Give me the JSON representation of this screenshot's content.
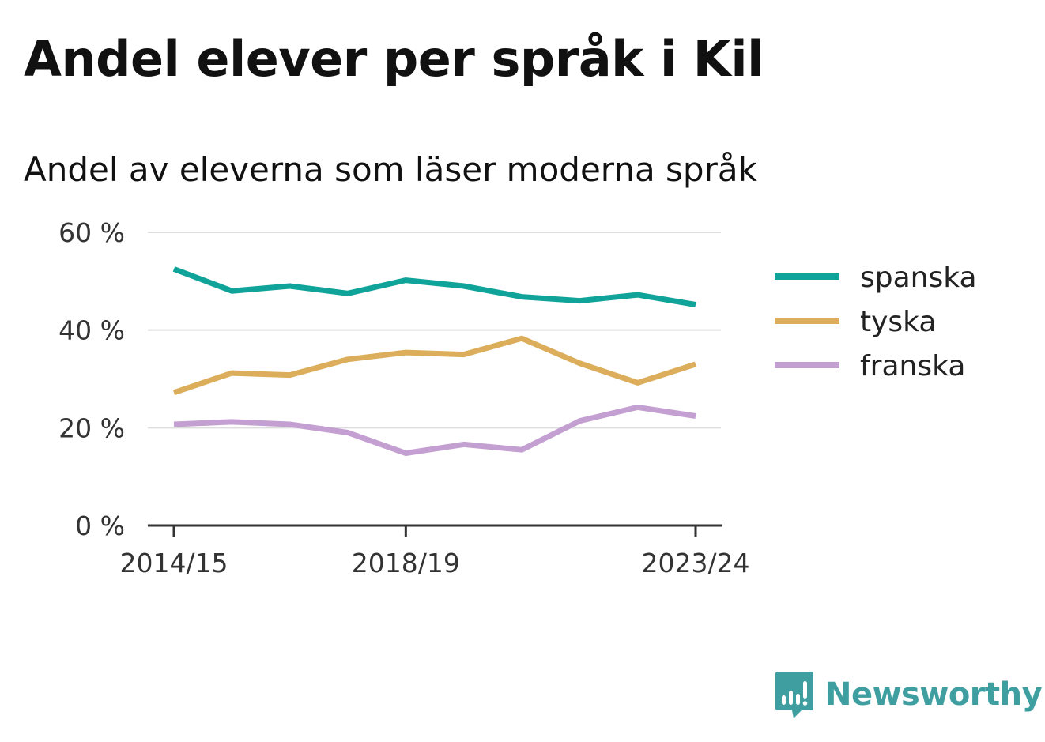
{
  "title": "Andel elever per språk i Kil",
  "subtitle": "Andel av eleverna som läser moderna språk",
  "brand": {
    "name": "Newsworthy",
    "icon": "bar-chart-speech-bubble-icon",
    "color": "#3f9ea0"
  },
  "chart_data": {
    "type": "line",
    "x": [
      "2014/15",
      "2015/16",
      "2016/17",
      "2017/18",
      "2018/19",
      "2019/20",
      "2020/21",
      "2021/22",
      "2022/23",
      "2023/24"
    ],
    "x_tick_labels": [
      "2014/15",
      "2018/19",
      "2023/24"
    ],
    "y_tick_labels": [
      "0 %",
      "20 %",
      "40 %",
      "60 %"
    ],
    "y_ticks": [
      0,
      20,
      40,
      60
    ],
    "ylim": [
      0,
      60
    ],
    "grid": true,
    "legend_position": "right",
    "series": [
      {
        "name": "spanska",
        "color": "#0fa39a",
        "values": [
          52.5,
          48.0,
          49.0,
          47.5,
          50.2,
          49.0,
          46.8,
          46.0,
          47.2,
          45.2
        ]
      },
      {
        "name": "tyska",
        "color": "#dcae5b",
        "values": [
          27.2,
          31.2,
          30.8,
          34.0,
          35.4,
          35.0,
          38.3,
          33.2,
          29.2,
          33.0
        ]
      },
      {
        "name": "franska",
        "color": "#c49fd1",
        "values": [
          20.7,
          21.2,
          20.7,
          19.0,
          14.8,
          16.6,
          15.5,
          21.4,
          24.2,
          22.4
        ]
      }
    ]
  }
}
